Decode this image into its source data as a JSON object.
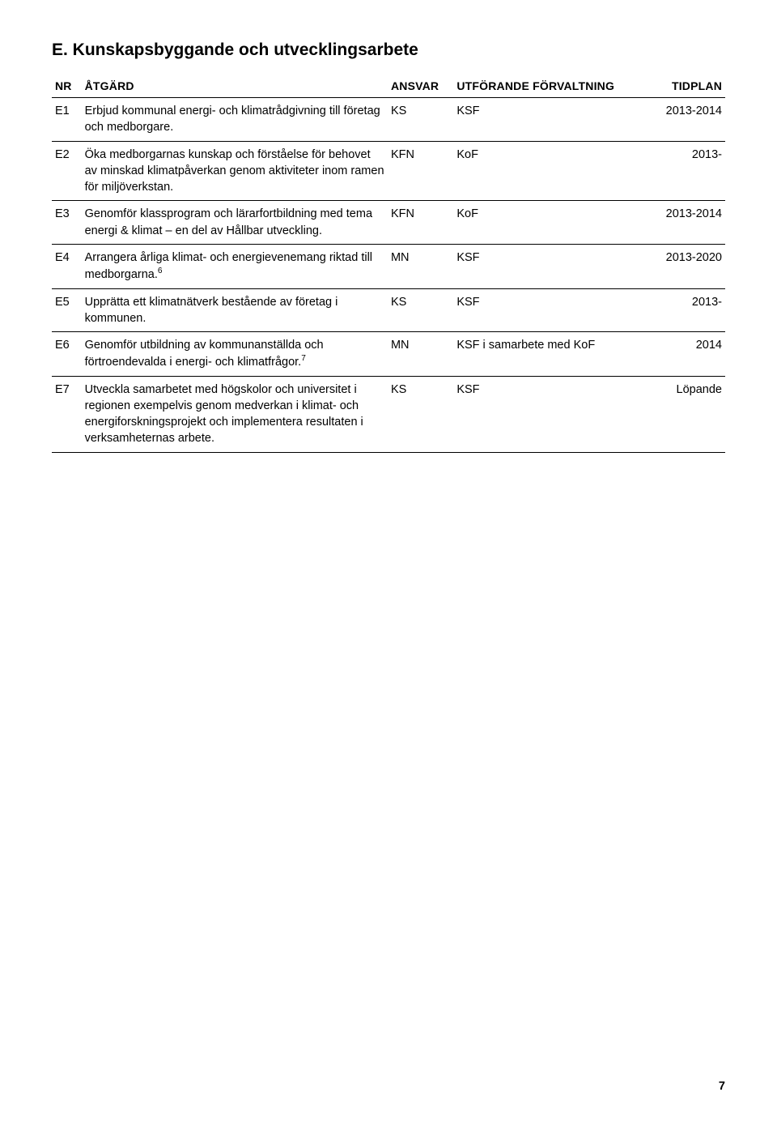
{
  "heading": "E. Kunskapsbyggande och utvecklingsarbete",
  "columns": {
    "nr": "NR",
    "atgard": "ÅTGÄRD",
    "ansvar": "ANSVAR",
    "utforande": "UTFÖRANDE FÖRVALTNING",
    "tidplan": "TIDPLAN"
  },
  "rows": [
    {
      "nr": "E1",
      "atgard": "Erbjud kommunal energi- och klimatrådgivning till företag och medborgare.",
      "ansvar": "KS",
      "utforande": "KSF",
      "tidplan": "2013-2014"
    },
    {
      "nr": "E2",
      "atgard": "Öka medborgarnas kunskap och förståelse för behovet av minskad klimatpåverkan genom aktiviteter inom ramen för miljöverkstan.",
      "ansvar": "KFN",
      "utforande": "KoF",
      "tidplan": "2013-"
    },
    {
      "nr": "E3",
      "atgard": "Genomför klassprogram och lärarfortbildning med tema energi & klimat – en del av Hållbar utveckling.",
      "ansvar": "KFN",
      "utforande": "KoF",
      "tidplan": "2013-2014"
    },
    {
      "nr": "E4",
      "atgard_pre": "Arrangera årliga klimat- och energievenemang riktad till medborgarna.",
      "note": "6",
      "ansvar": "MN",
      "utforande": "KSF",
      "tidplan": "2013-2020"
    },
    {
      "nr": "E5",
      "atgard": "Upprätta ett klimatnätverk bestående av företag i kommunen.",
      "ansvar": "KS",
      "utforande": "KSF",
      "tidplan": "2013-"
    },
    {
      "nr": "E6",
      "atgard_pre": "Genomför utbildning av kommunanställda och förtroendevalda i energi- och klimatfrågor.",
      "note": "7",
      "ansvar": "MN",
      "utforande": "KSF i samarbete med KoF",
      "tidplan": "2014"
    },
    {
      "nr": "E7",
      "atgard": "Utveckla samarbetet med högskolor och universitet i regionen exempelvis genom medverkan i klimat- och energiforskningsprojekt och implementera resultaten i verksamheternas arbete.",
      "ansvar": "KS",
      "utforande": "KSF",
      "tidplan": "Löpande"
    }
  ],
  "page_number": "7"
}
